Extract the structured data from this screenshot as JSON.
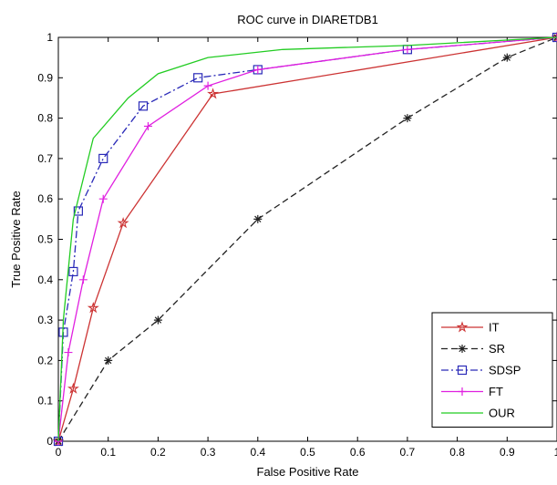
{
  "chart_data": {
    "type": "line",
    "title": "ROC curve in DIARETDB1",
    "xlabel": "False Positive Rate",
    "ylabel": "True Positive Rate",
    "xlim": [
      0,
      1
    ],
    "ylim": [
      0,
      1
    ],
    "x_ticks": [
      "0",
      "0.1",
      "0.2",
      "0.3",
      "0.4",
      "0.5",
      "0.6",
      "0.7",
      "0.8",
      "0.9",
      "1"
    ],
    "y_ticks": [
      "0",
      "0.1",
      "0.2",
      "0.3",
      "0.4",
      "0.5",
      "0.6",
      "0.7",
      "0.8",
      "0.9",
      "1"
    ],
    "grid": false,
    "legend_position": "bottom-right",
    "series": [
      {
        "name": "IT",
        "color": "#cc3333",
        "marker": "star",
        "dash": "solid",
        "points": [
          [
            0,
            0
          ],
          [
            0.03,
            0.13
          ],
          [
            0.07,
            0.33
          ],
          [
            0.13,
            0.54
          ],
          [
            0.31,
            0.86
          ],
          [
            1,
            1
          ]
        ]
      },
      {
        "name": "SR",
        "color": "#222222",
        "marker": "asterisk",
        "dash": "dashed",
        "points": [
          [
            0,
            0
          ],
          [
            0.1,
            0.2
          ],
          [
            0.2,
            0.3
          ],
          [
            0.4,
            0.55
          ],
          [
            0.7,
            0.8
          ],
          [
            0.9,
            0.95
          ],
          [
            1,
            1
          ]
        ]
      },
      {
        "name": "SDSP",
        "color": "#2a2ab8",
        "marker": "square",
        "dash": "dashdot",
        "points": [
          [
            0,
            0
          ],
          [
            0.01,
            0.27
          ],
          [
            0.03,
            0.42
          ],
          [
            0.04,
            0.57
          ],
          [
            0.09,
            0.7
          ],
          [
            0.17,
            0.83
          ],
          [
            0.28,
            0.9
          ],
          [
            0.4,
            0.92
          ],
          [
            0.7,
            0.97
          ],
          [
            1,
            1
          ]
        ]
      },
      {
        "name": "FT",
        "color": "#e020e0",
        "marker": "plus",
        "dash": "solid",
        "points": [
          [
            0,
            0
          ],
          [
            0.02,
            0.22
          ],
          [
            0.05,
            0.4
          ],
          [
            0.09,
            0.6
          ],
          [
            0.18,
            0.78
          ],
          [
            0.3,
            0.88
          ],
          [
            0.4,
            0.92
          ],
          [
            0.7,
            0.97
          ],
          [
            1,
            1
          ]
        ]
      },
      {
        "name": "OUR",
        "color": "#22cc22",
        "marker": "none",
        "dash": "solid",
        "points": [
          [
            0,
            0
          ],
          [
            0.01,
            0.3
          ],
          [
            0.03,
            0.55
          ],
          [
            0.07,
            0.75
          ],
          [
            0.14,
            0.85
          ],
          [
            0.2,
            0.91
          ],
          [
            0.3,
            0.95
          ],
          [
            0.45,
            0.97
          ],
          [
            0.7,
            0.98
          ],
          [
            1,
            1
          ]
        ]
      }
    ]
  }
}
